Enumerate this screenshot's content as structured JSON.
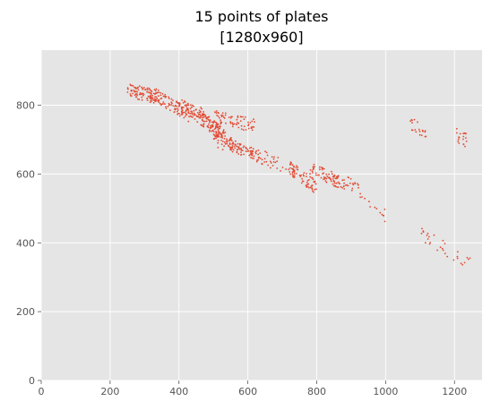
{
  "chart_data": {
    "type": "scatter",
    "title": [
      "15 points of plates",
      "[1280x960]"
    ],
    "xlabel": "",
    "ylabel": "",
    "xlim": [
      0,
      1280
    ],
    "ylim": [
      0,
      960
    ],
    "xticks": [
      0,
      200,
      400,
      600,
      800,
      1000,
      1200
    ],
    "yticks": [
      0,
      200,
      400,
      600,
      800
    ],
    "grid": true,
    "legend": "none",
    "colors": {
      "background": "#e5e5e5",
      "grid": "#ffffff",
      "marker": "#e24a33"
    },
    "series": [
      {
        "groups": [
          {
            "x": [
              250,
              350
            ],
            "y": [
              845,
              820
            ],
            "xs": 1,
            "n": 100
          },
          {
            "x": [
              330,
              430
            ],
            "y": [
              830,
              770
            ],
            "xs": 1,
            "n": 90
          },
          {
            "x": [
              400,
              520
            ],
            "y": [
              810,
              720
            ],
            "xs": 1,
            "n": 110
          },
          {
            "x": [
              460,
              560
            ],
            "y": [
              780,
              680
            ],
            "xs": 1,
            "n": 90
          },
          {
            "x": [
              500,
              620
            ],
            "y": [
              770,
              740
            ],
            "xs": 1,
            "n": 70
          },
          {
            "x": [
              500,
              620
            ],
            "y": [
              700,
              660
            ],
            "xs": 1,
            "n": 60
          },
          {
            "x": [
              560,
              680
            ],
            "y": [
              680,
              630
            ],
            "xs": 1,
            "n": 40
          },
          {
            "x": [
              620,
              740
            ],
            "y": [
              660,
              610
            ],
            "xs": 1,
            "n": 30
          },
          {
            "x": [
              720,
              800
            ],
            "y": [
              620,
              560
            ],
            "xs": 1,
            "n": 70
          },
          {
            "x": [
              780,
              880
            ],
            "y": [
              620,
              570
            ],
            "xs": 1,
            "n": 80
          },
          {
            "x": [
              870,
              1000
            ],
            "y": [
              600,
              480
            ],
            "xs": 1,
            "n": 30
          },
          {
            "x": [
              1070,
              1120
            ],
            "y": [
              745,
              725
            ],
            "xs": 1,
            "n": 20
          },
          {
            "x": [
              1200,
              1240
            ],
            "y": [
              715,
              695
            ],
            "xs": 1,
            "n": 20
          },
          {
            "x": [
              1100,
              1250
            ],
            "y": [
              430,
              335
            ],
            "xs": 1,
            "n": 30
          }
        ]
      }
    ]
  }
}
